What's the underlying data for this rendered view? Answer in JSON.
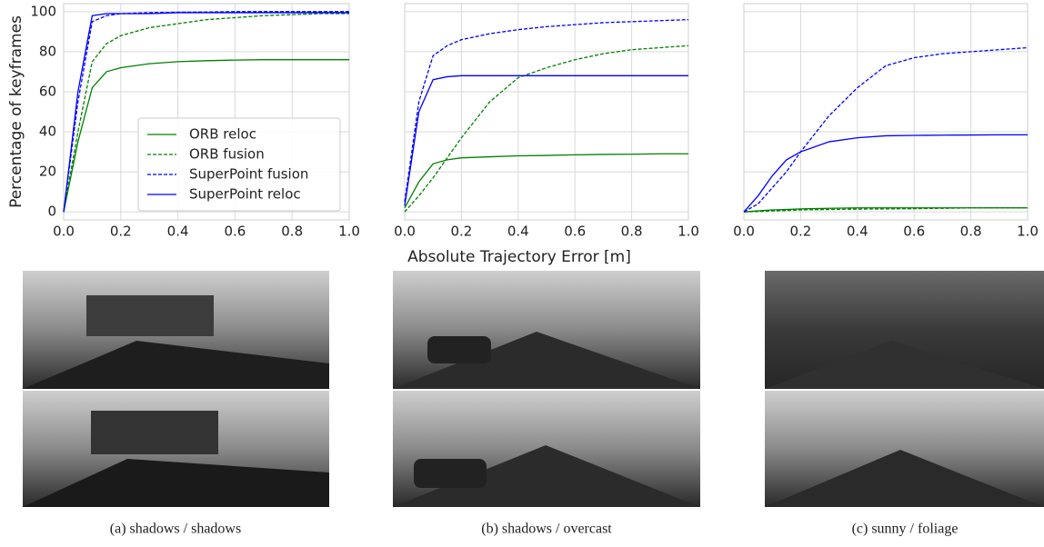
{
  "chart_data": [
    {
      "type": "line",
      "ylabel": "Percentage of keyframes",
      "caption": "(a) shadows / shadows",
      "x": [
        0,
        0.05,
        0.1,
        0.15,
        0.2,
        0.3,
        0.4,
        0.5,
        0.6,
        0.7,
        0.8,
        0.9,
        1.0
      ],
      "series": [
        {
          "name": "ORB reloc",
          "color": "#008000",
          "linestyle": "solid",
          "values": [
            0,
            35,
            62,
            70,
            72,
            74,
            75,
            75.5,
            75.8,
            76,
            76,
            76,
            76
          ]
        },
        {
          "name": "ORB fusion",
          "color": "#008000",
          "linestyle": "dashed",
          "values": [
            0,
            40,
            75,
            84,
            88,
            92,
            94,
            96,
            97,
            98,
            98.5,
            99,
            99
          ]
        },
        {
          "name": "SuperPoint fusion",
          "color": "#0000ff",
          "linestyle": "dashed",
          "values": [
            0,
            55,
            95,
            98,
            99,
            99.5,
            99.7,
            99.8,
            100,
            100,
            100,
            100,
            100
          ]
        },
        {
          "name": "SuperPoint reloc",
          "color": "#0000ff",
          "linestyle": "solid",
          "values": [
            0,
            60,
            98,
            99,
            99,
            99,
            99.5,
            99.5,
            99.5,
            99.5,
            99.5,
            99.5,
            99.5
          ]
        }
      ],
      "xlim": [
        0,
        1
      ],
      "ylim": [
        -4,
        104
      ],
      "xticks": [
        {
          "value": 0,
          "label": "0.0"
        },
        {
          "value": 0.2,
          "label": "0.2"
        },
        {
          "value": 0.4,
          "label": "0.4"
        },
        {
          "value": 0.6,
          "label": "0.6"
        },
        {
          "value": 0.8,
          "label": "0.8"
        },
        {
          "value": 1,
          "label": "1.0"
        }
      ],
      "yticks": [
        0,
        20,
        40,
        60,
        80,
        100
      ],
      "show_ytick_labels": true,
      "grid": true,
      "legend": "lower right"
    },
    {
      "type": "line",
      "xlabel": "Absolute Trajectory Error [m]",
      "caption": "(b) shadows / overcast",
      "x": [
        0,
        0.05,
        0.1,
        0.15,
        0.2,
        0.3,
        0.4,
        0.5,
        0.6,
        0.7,
        0.8,
        0.9,
        1.0
      ],
      "series": [
        {
          "name": "ORB reloc",
          "color": "#008000",
          "linestyle": "solid",
          "values": [
            2,
            15,
            24,
            26,
            27,
            27.5,
            28,
            28.2,
            28.5,
            28.7,
            28.8,
            29,
            29
          ]
        },
        {
          "name": "ORB fusion",
          "color": "#008000",
          "linestyle": "dashed",
          "values": [
            0,
            8,
            17,
            27,
            37,
            55,
            67,
            72,
            76,
            79,
            81,
            82,
            83
          ]
        },
        {
          "name": "SuperPoint fusion",
          "color": "#0000ff",
          "linestyle": "dashed",
          "values": [
            5,
            55,
            78,
            83,
            86,
            89,
            91,
            92.5,
            93.5,
            94.5,
            95,
            95.5,
            96
          ]
        },
        {
          "name": "SuperPoint reloc",
          "color": "#0000ff",
          "linestyle": "solid",
          "values": [
            3,
            50,
            66,
            67.5,
            68,
            68,
            68,
            68,
            68,
            68,
            68,
            68,
            68
          ]
        }
      ],
      "xlim": [
        0,
        1
      ],
      "ylim": [
        -4,
        104
      ],
      "xticks": [
        {
          "value": 0,
          "label": "0.0"
        },
        {
          "value": 0.2,
          "label": "0.2"
        },
        {
          "value": 0.4,
          "label": "0.4"
        },
        {
          "value": 0.6,
          "label": "0.6"
        },
        {
          "value": 0.8,
          "label": "0.8"
        },
        {
          "value": 1,
          "label": "1.0"
        }
      ],
      "yticks": [
        0,
        20,
        40,
        60,
        80,
        100
      ],
      "show_ytick_labels": false,
      "grid": true
    },
    {
      "type": "line",
      "caption": "(c) sunny / foliage",
      "x": [
        0,
        0.05,
        0.1,
        0.15,
        0.2,
        0.3,
        0.4,
        0.5,
        0.6,
        0.7,
        0.8,
        0.9,
        1.0
      ],
      "series": [
        {
          "name": "ORB reloc",
          "color": "#008000",
          "linestyle": "solid",
          "values": [
            0,
            0.5,
            1,
            1.2,
            1.5,
            1.8,
            2,
            2,
            2,
            2,
            2,
            2,
            2
          ]
        },
        {
          "name": "ORB fusion",
          "color": "#008000",
          "linestyle": "dashed",
          "values": [
            0,
            0.2,
            0.5,
            0.7,
            1,
            1.2,
            1.4,
            1.5,
            1.6,
            1.8,
            2,
            2,
            2
          ]
        },
        {
          "name": "SuperPoint fusion",
          "color": "#0000ff",
          "linestyle": "dashed",
          "values": [
            0,
            4,
            12,
            20,
            30,
            48,
            62,
            73,
            77,
            79,
            80,
            81,
            82
          ]
        },
        {
          "name": "SuperPoint reloc",
          "color": "#0000ff",
          "linestyle": "solid",
          "values": [
            0,
            8,
            18,
            26,
            30,
            35,
            37,
            38,
            38.2,
            38.3,
            38.4,
            38.5,
            38.5
          ]
        }
      ],
      "xlim": [
        0,
        1
      ],
      "ylim": [
        -4,
        104
      ],
      "xticks": [
        {
          "value": 0,
          "label": "0.0"
        },
        {
          "value": 0.2,
          "label": "0.2"
        },
        {
          "value": 0.4,
          "label": "0.4"
        },
        {
          "value": 0.6,
          "label": "0.6"
        },
        {
          "value": 0.8,
          "label": "0.8"
        },
        {
          "value": 1,
          "label": "1.0"
        }
      ],
      "yticks": [
        0,
        20,
        40,
        60,
        80,
        100
      ],
      "show_ytick_labels": false,
      "grid": true
    }
  ]
}
